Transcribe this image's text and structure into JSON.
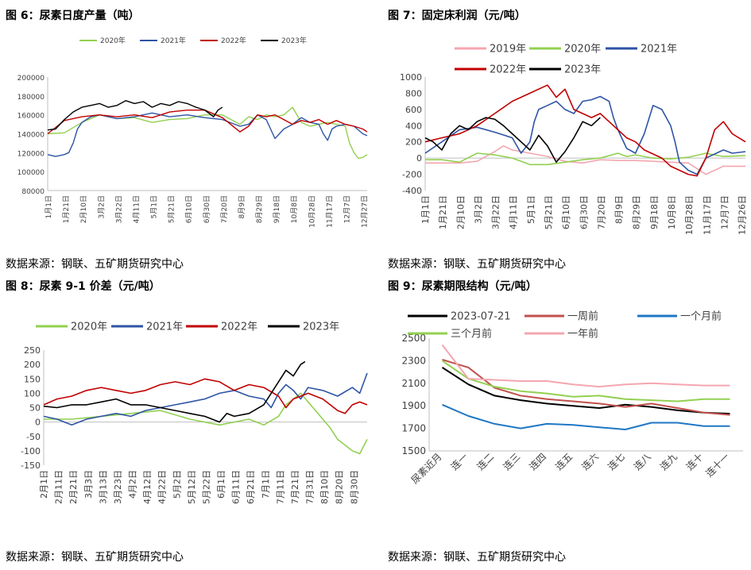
{
  "page": {
    "source_label": "数据来源：钢联、五矿期货研究中心"
  },
  "chart_data": [
    {
      "id": "c1",
      "type": "line",
      "title": "图 6：尿素日度产量（吨）",
      "ylim": [
        80000,
        200000
      ],
      "yticks": [
        80000,
        100000,
        120000,
        140000,
        160000,
        180000,
        200000
      ],
      "ytick_labels": [
        "80000",
        "100000",
        "120000",
        "140000",
        "160000",
        "180000",
        "200000"
      ],
      "xlim": [
        1,
        365
      ],
      "xticks": [
        1,
        21,
        41,
        61,
        81,
        101,
        121,
        141,
        161,
        181,
        201,
        221,
        241,
        261,
        281,
        301,
        321,
        341,
        361
      ],
      "xtick_labels": [
        "1月1日",
        "1月21日",
        "2月10日",
        "3月2日",
        "3月22日",
        "4月11日",
        "5月1日",
        "5月21日",
        "6月10日",
        "6月30日",
        "7月20日",
        "8月9日",
        "8月29日",
        "9月18日",
        "10月8日",
        "10月28日",
        "11月17日",
        "12月7日",
        "12月27日"
      ],
      "legend_position": "top",
      "series": [
        {
          "name": "2020年",
          "color": "#92d050",
          "x": [
            1,
            20,
            40,
            60,
            80,
            100,
            120,
            140,
            160,
            180,
            200,
            220,
            230,
            240,
            250,
            260,
            270,
            280,
            290,
            300,
            310,
            320,
            330,
            340,
            345,
            350,
            355,
            360,
            365
          ],
          "y": [
            140000,
            141000,
            152000,
            160000,
            156000,
            157000,
            152000,
            155000,
            156000,
            160000,
            160000,
            150000,
            158000,
            155000,
            160000,
            158000,
            160000,
            168000,
            152000,
            148000,
            150000,
            152000,
            150000,
            148000,
            130000,
            120000,
            114000,
            115000,
            118000
          ]
        },
        {
          "name": "2021年",
          "color": "#2e54a5",
          "x": [
            1,
            10,
            20,
            25,
            30,
            35,
            40,
            50,
            60,
            80,
            100,
            120,
            140,
            160,
            180,
            200,
            220,
            230,
            240,
            250,
            260,
            270,
            280,
            290,
            300,
            310,
            315,
            320,
            325,
            330,
            340,
            350,
            360,
            365
          ],
          "y": [
            118000,
            116000,
            118000,
            120000,
            130000,
            145000,
            152000,
            158000,
            160000,
            156000,
            158000,
            162000,
            158000,
            160000,
            157000,
            155000,
            148000,
            150000,
            160000,
            155000,
            135000,
            145000,
            150000,
            157000,
            152000,
            150000,
            140000,
            133000,
            145000,
            148000,
            150000,
            148000,
            140000,
            138000
          ]
        },
        {
          "name": "2022年",
          "color": "#c00000",
          "x": [
            1,
            20,
            40,
            60,
            80,
            100,
            120,
            140,
            160,
            180,
            200,
            220,
            230,
            240,
            250,
            260,
            270,
            280,
            290,
            300,
            310,
            320,
            330,
            340,
            350,
            360,
            365
          ],
          "y": [
            140000,
            154000,
            158000,
            160000,
            158000,
            160000,
            157000,
            163000,
            165000,
            165000,
            157000,
            142000,
            148000,
            160000,
            158000,
            160000,
            155000,
            150000,
            154000,
            152000,
            155000,
            150000,
            154000,
            150000,
            148000,
            145000,
            142000
          ]
        },
        {
          "name": "2023年",
          "color": "#000000",
          "x": [
            1,
            10,
            20,
            30,
            40,
            50,
            60,
            70,
            80,
            90,
            100,
            110,
            120,
            130,
            140,
            150,
            160,
            170,
            180,
            190,
            195,
            200
          ],
          "y": [
            144000,
            145000,
            155000,
            163000,
            168000,
            170000,
            172000,
            168000,
            170000,
            175000,
            172000,
            174000,
            168000,
            172000,
            170000,
            174000,
            172000,
            168000,
            165000,
            158000,
            165000,
            168000
          ]
        }
      ]
    },
    {
      "id": "c2",
      "type": "line",
      "title": "图 7：固定床利润（元/吨）",
      "ylim": [
        -400,
        1000
      ],
      "yticks": [
        -400,
        -200,
        0,
        200,
        400,
        600,
        800,
        1000
      ],
      "ytick_labels": [
        "-400",
        "-200",
        "0",
        "200",
        "400",
        "600",
        "800",
        "1000"
      ],
      "xlim": [
        1,
        365
      ],
      "xticks": [
        1,
        21,
        41,
        61,
        81,
        101,
        121,
        141,
        161,
        181,
        201,
        221,
        241,
        261,
        281,
        301,
        321,
        341,
        361
      ],
      "xtick_labels": [
        "1月1日",
        "1月21日",
        "2月10日",
        "3月2日",
        "3月22日",
        "4月11日",
        "5月1日",
        "5月21日",
        "6月10日",
        "6月30日",
        "7月20日",
        "8月9日",
        "8月29日",
        "9月18日",
        "10月8日",
        "10月28日",
        "11月17日",
        "12月7日",
        "12月26日"
      ],
      "legend_position": "top",
      "series": [
        {
          "name": "2019年",
          "color": "#f4a6b0",
          "x": [
            1,
            40,
            60,
            80,
            90,
            100,
            120,
            140,
            160,
            180,
            200,
            220,
            240,
            260,
            280,
            300,
            320,
            340,
            365
          ],
          "y": [
            -60,
            -60,
            -40,
            80,
            150,
            100,
            60,
            20,
            -40,
            -60,
            -20,
            -30,
            -30,
            -40,
            -50,
            -60,
            -200,
            -100,
            -100
          ]
        },
        {
          "name": "2020年",
          "color": "#92d050",
          "x": [
            1,
            20,
            40,
            60,
            80,
            100,
            120,
            140,
            160,
            180,
            200,
            220,
            230,
            240,
            260,
            280,
            300,
            320,
            340,
            365
          ],
          "y": [
            -20,
            -20,
            -50,
            60,
            40,
            0,
            -80,
            -80,
            -50,
            -20,
            0,
            60,
            20,
            40,
            0,
            -10,
            10,
            60,
            20,
            30
          ]
        },
        {
          "name": "2021年",
          "color": "#2e54a5",
          "x": [
            1,
            20,
            40,
            60,
            80,
            100,
            110,
            120,
            125,
            130,
            140,
            150,
            160,
            170,
            180,
            190,
            200,
            210,
            215,
            220,
            230,
            240,
            250,
            260,
            270,
            280,
            285,
            290,
            300,
            310,
            320,
            330,
            340,
            350,
            365
          ],
          "y": [
            60,
            200,
            350,
            380,
            320,
            250,
            60,
            200,
            450,
            600,
            650,
            700,
            600,
            550,
            700,
            720,
            760,
            700,
            500,
            350,
            120,
            60,
            300,
            650,
            600,
            400,
            200,
            -50,
            -150,
            -200,
            0,
            50,
            100,
            60,
            80
          ]
        },
        {
          "name": "2022年",
          "color": "#c00000",
          "x": [
            1,
            20,
            40,
            60,
            80,
            100,
            120,
            140,
            150,
            160,
            170,
            180,
            190,
            200,
            210,
            220,
            230,
            240,
            250,
            260,
            270,
            280,
            290,
            300,
            310,
            320,
            330,
            340,
            350,
            365
          ],
          "y": [
            200,
            250,
            300,
            400,
            550,
            700,
            800,
            900,
            750,
            850,
            600,
            550,
            500,
            550,
            450,
            350,
            250,
            200,
            100,
            50,
            0,
            -100,
            -150,
            -200,
            -220,
            0,
            350,
            450,
            300,
            200
          ]
        },
        {
          "name": "2023年",
          "color": "#000000",
          "x": [
            1,
            10,
            20,
            30,
            40,
            50,
            60,
            70,
            80,
            90,
            100,
            110,
            120,
            130,
            140,
            150,
            160,
            170,
            180,
            190,
            200
          ],
          "y": [
            250,
            200,
            100,
            300,
            400,
            350,
            450,
            500,
            480,
            400,
            300,
            200,
            100,
            280,
            150,
            -50,
            80,
            250,
            450,
            400,
            500
          ]
        }
      ]
    },
    {
      "id": "c3",
      "type": "line",
      "title": "图 8：尿素 9-1 价差（元/吨）",
      "ylim": [
        -150,
        250
      ],
      "yticks": [
        -150,
        -100,
        -50,
        0,
        50,
        100,
        150,
        200,
        250
      ],
      "ytick_labels": [
        "-150",
        "-100",
        "-50",
        "0",
        "50",
        "100",
        "150",
        "200",
        "250"
      ],
      "xlim": [
        1,
        220
      ],
      "xticks": [
        1,
        11,
        21,
        31,
        41,
        51,
        61,
        71,
        81,
        91,
        101,
        111,
        121,
        131,
        141,
        151,
        161,
        171,
        181,
        191,
        201,
        211
      ],
      "xtick_labels": [
        "2月1日",
        "2月11日",
        "2月21日",
        "3月3日",
        "3月13日",
        "3月23日",
        "4月2日",
        "4月12日",
        "4月22日",
        "5月2日",
        "5月12日",
        "5月22日",
        "6月1日",
        "6月11日",
        "6月21日",
        "7月1日",
        "7月11日",
        "7月21日",
        "7月31日",
        "8月10日",
        "8月20日",
        "8月30日"
      ],
      "legend_position": "top",
      "series": [
        {
          "name": "2020年",
          "color": "#92d050",
          "x": [
            1,
            20,
            40,
            60,
            80,
            100,
            120,
            140,
            150,
            160,
            165,
            170,
            175,
            180,
            185,
            190,
            195,
            200,
            205,
            210,
            215,
            218,
            220
          ],
          "y": [
            10,
            10,
            20,
            30,
            40,
            10,
            -10,
            10,
            -10,
            20,
            60,
            80,
            100,
            70,
            40,
            10,
            -20,
            -60,
            -80,
            -100,
            -110,
            -80,
            -60
          ]
        },
        {
          "name": "2021年",
          "color": "#2e54a5",
          "x": [
            1,
            10,
            20,
            30,
            40,
            50,
            60,
            70,
            80,
            90,
            100,
            110,
            120,
            130,
            140,
            150,
            155,
            160,
            165,
            170,
            175,
            180,
            190,
            200,
            210,
            215,
            220
          ],
          "y": [
            20,
            10,
            -10,
            10,
            20,
            30,
            20,
            40,
            50,
            60,
            70,
            80,
            100,
            110,
            90,
            80,
            50,
            100,
            130,
            110,
            80,
            120,
            110,
            90,
            120,
            100,
            170
          ]
        },
        {
          "name": "2022年",
          "color": "#c00000",
          "x": [
            1,
            10,
            20,
            30,
            40,
            50,
            60,
            70,
            80,
            90,
            100,
            110,
            120,
            130,
            140,
            150,
            160,
            165,
            170,
            180,
            190,
            200,
            205,
            210,
            215,
            220
          ],
          "y": [
            60,
            80,
            90,
            110,
            120,
            110,
            100,
            110,
            130,
            140,
            130,
            150,
            140,
            110,
            130,
            120,
            90,
            50,
            80,
            100,
            80,
            40,
            30,
            60,
            70,
            60
          ]
        },
        {
          "name": "2023年",
          "color": "#000000",
          "x": [
            1,
            10,
            20,
            30,
            40,
            50,
            60,
            70,
            80,
            90,
            100,
            110,
            120,
            125,
            130,
            140,
            150,
            155,
            160,
            165,
            170,
            175,
            178
          ],
          "y": [
            55,
            50,
            60,
            60,
            70,
            80,
            60,
            60,
            50,
            40,
            30,
            20,
            0,
            30,
            20,
            30,
            60,
            100,
            140,
            180,
            160,
            200,
            210
          ]
        }
      ]
    },
    {
      "id": "c4",
      "type": "line",
      "title": "图 9：尿素期限结构（元/吨）",
      "ylim": [
        1500,
        2500
      ],
      "yticks": [
        1500,
        1700,
        1900,
        2100,
        2300,
        2500
      ],
      "ytick_labels": [
        "1500",
        "1700",
        "1900",
        "2100",
        "2300",
        "2500"
      ],
      "categories": [
        "尿素近月",
        "连一",
        "连二",
        "连三",
        "连四",
        "连五",
        "连六",
        "连七",
        "连八",
        "连九",
        "连十",
        "连十一"
      ],
      "legend_position": "top",
      "series": [
        {
          "name": "2023-07-21",
          "color": "#000000",
          "values": [
            2240,
            2090,
            1990,
            1950,
            1920,
            1900,
            1880,
            1910,
            1890,
            1860,
            1840,
            1830
          ]
        },
        {
          "name": "一周前",
          "color": "#c0504d",
          "values": [
            2310,
            2240,
            2060,
            1990,
            1960,
            1940,
            1920,
            1890,
            1920,
            1880,
            1840,
            1820
          ]
        },
        {
          "name": "一个月前",
          "color": "#1f77c4",
          "values": [
            1910,
            1810,
            1740,
            1700,
            1740,
            1730,
            1710,
            1690,
            1750,
            1750,
            1720,
            1720
          ]
        },
        {
          "name": "三个月前",
          "color": "#92d050",
          "values": [
            2300,
            2140,
            2070,
            2030,
            2010,
            1980,
            1990,
            1960,
            1950,
            1940,
            1960,
            1960
          ]
        },
        {
          "name": "一年前",
          "color": "#f4a6b0",
          "values": [
            2440,
            2140,
            2130,
            2120,
            2120,
            2090,
            2070,
            2090,
            2100,
            2090,
            2080,
            2080
          ]
        }
      ]
    }
  ]
}
